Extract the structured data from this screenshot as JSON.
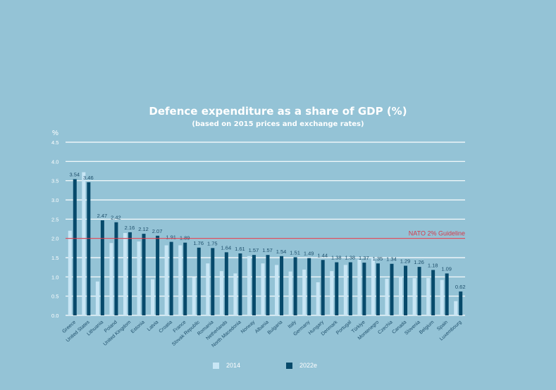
{
  "chart_data": {
    "type": "bar",
    "title": "Defence expenditure as a share of GDP (%)",
    "subtitle": "(based on 2015 prices and exchange rates)",
    "ylabel": "%",
    "xlabel": "",
    "ylim": [
      0,
      4.5
    ],
    "yticks": [
      "0.0",
      "0.5",
      "1.0",
      "1.5",
      "2.0",
      "2.5",
      "3.0",
      "3.5",
      "4.0",
      "4.5"
    ],
    "grid": true,
    "legend_position": "bottom",
    "categories": [
      "Greece",
      "United States",
      "Lithuania",
      "Poland",
      "United Kingdom",
      "Estonia",
      "Latvia",
      "Croatia",
      "France",
      "Slovak Republic",
      "Romania",
      "Netherlands",
      "North Macedonia",
      "Norway",
      "Albania",
      "Bulgaria",
      "Italy",
      "Germany",
      "Hungary",
      "Denmark",
      "Portugal",
      "Türkiye",
      "Montenegro",
      "Czechia",
      "Canada",
      "Slovenia",
      "Belgium",
      "Spain",
      "Luxembourg"
    ],
    "series": [
      {
        "name": "2014",
        "color": "#c8e6f5",
        "values": [
          2.2,
          3.72,
          0.88,
          1.88,
          2.14,
          1.92,
          0.94,
          1.82,
          1.82,
          0.99,
          1.35,
          1.15,
          1.09,
          1.54,
          1.35,
          1.31,
          1.14,
          1.19,
          0.86,
          1.15,
          1.31,
          1.45,
          1.5,
          0.95,
          1.01,
          0.97,
          0.97,
          0.92,
          0.37
        ]
      },
      {
        "name": "2022e",
        "color": "#074a6b",
        "values": [
          3.54,
          3.46,
          2.47,
          2.42,
          2.16,
          2.12,
          2.07,
          1.91,
          1.89,
          1.76,
          1.75,
          1.64,
          1.61,
          1.57,
          1.57,
          1.54,
          1.51,
          1.49,
          1.44,
          1.38,
          1.38,
          1.37,
          1.35,
          1.34,
          1.29,
          1.26,
          1.18,
          1.09,
          0.62
        ]
      }
    ],
    "reference_line": {
      "value": 2.0,
      "label": "NATO 2% Guideline",
      "color": "#d63a4a"
    }
  }
}
